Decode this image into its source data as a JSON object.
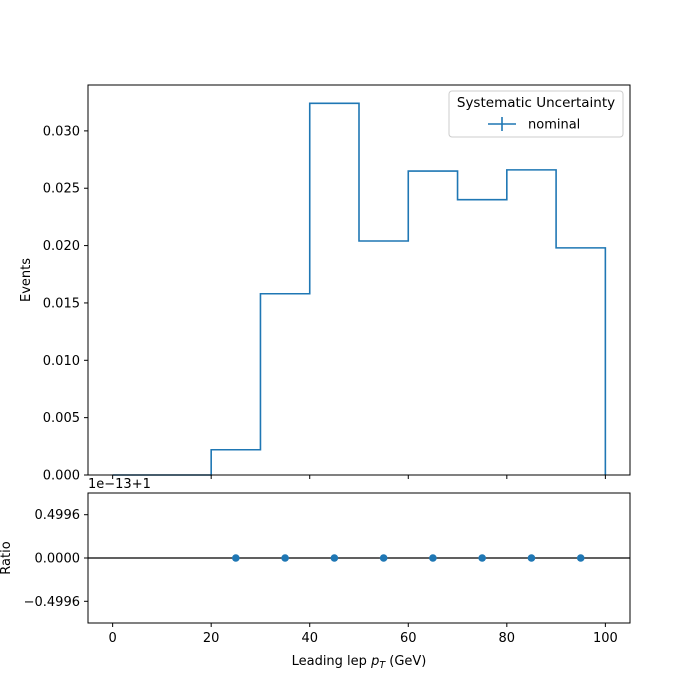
{
  "chart_data": [
    {
      "type": "histogram",
      "panel": "main",
      "ylabel": "Events",
      "xlim": [
        -5,
        105
      ],
      "ylim": [
        0,
        0.034
      ],
      "grid": false,
      "bin_edges": [
        0,
        10,
        20,
        30,
        40,
        50,
        60,
        70,
        80,
        90,
        100
      ],
      "series": [
        {
          "name": "nominal",
          "color": "#1f77b4",
          "values": [
            0.0,
            0.0,
            0.0022,
            0.0158,
            0.0324,
            0.0204,
            0.0265,
            0.024,
            0.0266,
            0.0198
          ]
        }
      ],
      "yticks": [
        0.0,
        0.005,
        0.01,
        0.015,
        0.02,
        0.025,
        0.03
      ],
      "ytick_labels": [
        "0.000",
        "0.005",
        "0.010",
        "0.015",
        "0.020",
        "0.025",
        "0.030"
      ],
      "legend": {
        "title": "Systematic Uncertainty",
        "placement": "top-right",
        "entries": [
          "nominal"
        ]
      }
    },
    {
      "type": "scatter",
      "panel": "ratio",
      "ylabel": "Ratio",
      "xlabel_prefix": "Leading lep ",
      "xlabel_var": "p",
      "xlabel_sub": "T",
      "xlabel_suffix": " (GeV)",
      "offset_text": "1e−13+1",
      "xlim": [
        -5,
        105
      ],
      "ylim": [
        -0.75,
        0.75
      ],
      "reference_line": 0.0,
      "color": "#1f77b4",
      "x": [
        25,
        35,
        45,
        55,
        65,
        75,
        85,
        95
      ],
      "y": [
        0,
        0,
        0,
        0,
        0,
        0,
        0,
        0
      ],
      "yticks": [
        -0.4996,
        0.0,
        0.4996
      ],
      "ytick_labels": [
        "−0.4996",
        "0.0000",
        "0.4996"
      ],
      "xticks": [
        0,
        20,
        40,
        60,
        80,
        100
      ],
      "xtick_labels": [
        "0",
        "20",
        "40",
        "60",
        "80",
        "100"
      ]
    }
  ]
}
